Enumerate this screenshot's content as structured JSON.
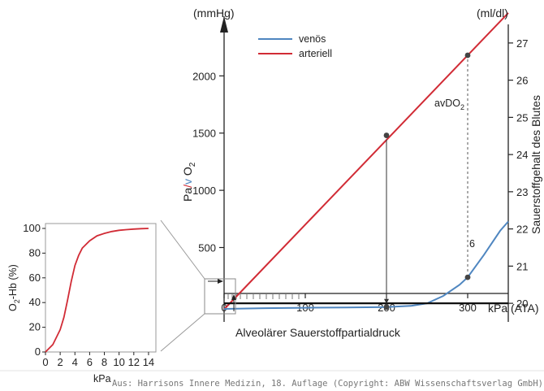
{
  "footer": "Aus: Harrisons Innere Medizin, 18. Auflage (Copyright: ABW Wissenschaftsverlag GmbH)",
  "chart_data": [
    {
      "type": "line",
      "id": "main",
      "xlabel": "Alveolärer Sauerstoffpartialdruck",
      "xunit": "kPa (ATA)",
      "xlim": [
        0,
        350
      ],
      "xticks": [
        0,
        100,
        200,
        300
      ],
      "ylabel_left": [
        "Pa",
        "/",
        "v",
        " O",
        "2"
      ],
      "yunit_left": "(mmHg)",
      "ylim_left": [
        -150,
        2450
      ],
      "yticks_left": [
        500,
        1000,
        1500,
        2000
      ],
      "ylabel_right": "Sauerstoffgehalt des Blutes",
      "yunit_right": "(ml/dl)",
      "ylim_right": [
        19.5,
        27.5
      ],
      "yticks_right": [
        20,
        21,
        22,
        23,
        24,
        25,
        26,
        27
      ],
      "legend": [
        {
          "name": "venös",
          "color": "#4f86c0"
        },
        {
          "name": "arteriell",
          "color": "#d12b35"
        }
      ],
      "series": [
        {
          "name": "arteriell",
          "axis": "left",
          "color": "#d12b35",
          "x": [
            0,
            350
          ],
          "y": [
            -40,
            2550
          ]
        },
        {
          "name": "venös",
          "axis": "right",
          "color": "#4f86c0",
          "x": [
            0,
            50,
            100,
            150,
            200,
            230,
            250,
            270,
            290,
            300,
            320,
            340,
            350
          ],
          "y": [
            19.85,
            19.87,
            19.88,
            19.89,
            19.9,
            19.93,
            20.0,
            20.2,
            20.5,
            20.7,
            21.3,
            21.95,
            22.2
          ]
        },
        {
          "name": "reference",
          "axis": "right",
          "color": "#111111",
          "x": [
            0,
            350
          ],
          "y": [
            20.0,
            20.0
          ]
        }
      ],
      "points": [
        {
          "x": 200,
          "y_left": 1480,
          "series": "arteriell"
        },
        {
          "x": 200,
          "y_right": 19.9,
          "series": "venös"
        },
        {
          "x": 300,
          "y_left": 2180,
          "series": "arteriell"
        },
        {
          "x": 300,
          "y_right": 20.7,
          "series": "venös"
        }
      ],
      "annotations": [
        {
          "text": "avDO",
          "sub": "2",
          "x": 300,
          "y_left": 1900
        },
        {
          "text": "6",
          "x": 303,
          "y_right": 20.95
        }
      ]
    },
    {
      "type": "line",
      "id": "inset",
      "xlabel": "kPa",
      "xlim": [
        0,
        15
      ],
      "xticks": [
        0,
        2,
        4,
        6,
        8,
        10,
        12,
        14
      ],
      "ylabel": [
        "O",
        "2",
        "-Hb (%)"
      ],
      "ylim": [
        0,
        100
      ],
      "yticks": [
        0,
        20,
        40,
        60,
        80,
        100
      ],
      "series": [
        {
          "name": "O2-Hb",
          "color": "#d12b35",
          "x": [
            0,
            1,
            2,
            2.5,
            3,
            3.5,
            4,
            4.5,
            5,
            6,
            7,
            8,
            9,
            10,
            11,
            12,
            13,
            14
          ],
          "y": [
            0,
            6,
            18,
            28,
            42,
            57,
            70,
            78,
            84,
            90,
            94,
            96,
            97.5,
            98.5,
            99,
            99.5,
            99.8,
            100
          ]
        }
      ]
    }
  ]
}
